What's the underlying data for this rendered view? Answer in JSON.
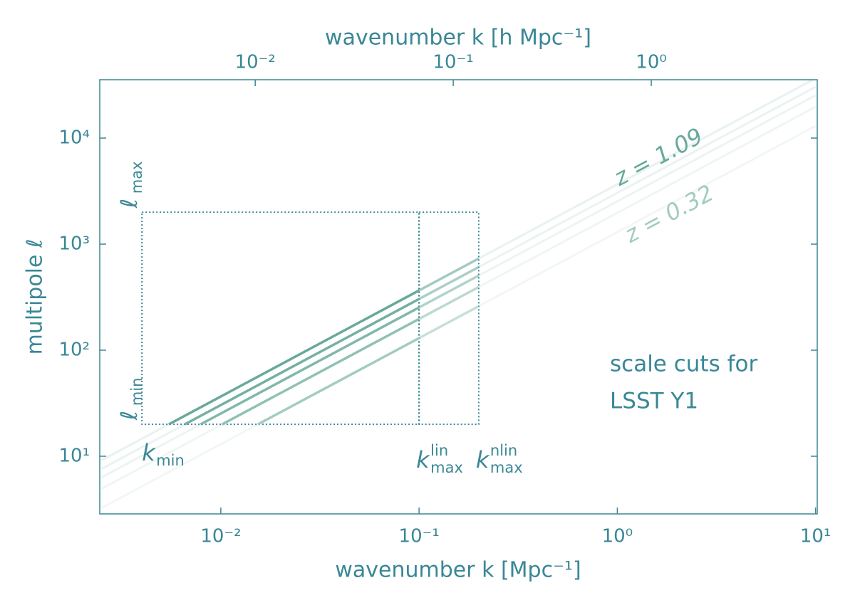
{
  "chart_data": {
    "type": "line",
    "xlabel": "wavenumber k [Mpc⁻¹]",
    "x2label": "wavenumber k [h Mpc⁻¹]",
    "ylabel": "multipole ℓ",
    "log_x": true,
    "log_y": true,
    "xlim": [
      0.00245,
      10.2
    ],
    "x2lim": [
      0.00164,
      6.89
    ],
    "ylim": [
      2.86,
      35500
    ],
    "xticks": [
      {
        "value": 0.01,
        "label": "10⁻²"
      },
      {
        "value": 0.1,
        "label": "10⁻¹"
      },
      {
        "value": 1,
        "label": "10⁰"
      },
      {
        "value": 10,
        "label": "10¹"
      }
    ],
    "x2ticks": [
      {
        "value": 0.01,
        "label": "10⁻²"
      },
      {
        "value": 0.1,
        "label": "10⁻¹"
      },
      {
        "value": 1,
        "label": "10⁰"
      }
    ],
    "yticks": [
      {
        "value": 10,
        "label": "10¹"
      },
      {
        "value": 100,
        "label": "10²"
      },
      {
        "value": 1000,
        "label": "10³"
      },
      {
        "value": 10000,
        "label": "10⁴"
      }
    ],
    "axis_color": "#3a8796",
    "series": [
      {
        "color": "#67a99b",
        "x": [
          0.005464,
          0.1,
          0.2
        ],
        "values": [
          20,
          366,
          732
        ]
      },
      {
        "color": "#74b0a2",
        "x": [
          0.006579,
          0.1,
          0.2
        ],
        "values": [
          20,
          304,
          608
        ]
      },
      {
        "color": "#80b8a9",
        "x": [
          0.007905,
          0.1,
          0.2
        ],
        "values": [
          20,
          253,
          506
        ]
      },
      {
        "color": "#8fc1b3",
        "x": [
          0.01015,
          0.1,
          0.2
        ],
        "values": [
          20,
          197,
          394
        ]
      },
      {
        "color": "#a2ccbf",
        "x": [
          0.01538,
          0.1,
          0.2
        ],
        "values": [
          20,
          130,
          260
        ]
      }
    ],
    "extended_lines": [
      {
        "x": [
          0.0025,
          10
        ],
        "values": [
          9.15,
          36600
        ]
      },
      {
        "x": [
          0.0025,
          10
        ],
        "values": [
          7.6,
          30400
        ]
      },
      {
        "x": [
          0.0025,
          10
        ],
        "values": [
          6.325,
          25300
        ]
      },
      {
        "x": [
          0.0025,
          10
        ],
        "values": [
          4.925,
          19700
        ]
      },
      {
        "x": [
          0.0025,
          10
        ],
        "values": [
          3.25,
          13000
        ]
      }
    ],
    "scale_cuts": {
      "kmin": 0.004,
      "kmax_lin": 0.1,
      "kmax_nlin": 0.2,
      "lmin": 20,
      "lmax": 2000
    },
    "scale_cut_labels": {
      "kmin": {
        "symbol": "k",
        "sub": "min"
      },
      "kmax_lin": {
        "symbol": "k",
        "sub": "max",
        "sup": "lin"
      },
      "kmax_nlin": {
        "symbol": "k",
        "sub": "max",
        "sup": "nlin"
      },
      "lmax": {
        "symbol": "ℓ",
        "sub": "max"
      },
      "lmin": {
        "symbol": "ℓ",
        "sub": "min"
      }
    },
    "annotations": [
      {
        "text": "z = 1.09",
        "color": "#67a99b"
      },
      {
        "text": "z = 0.32",
        "color": "#a2ccbf"
      }
    ],
    "note": [
      "scale cuts for",
      "LSST Y1"
    ]
  }
}
